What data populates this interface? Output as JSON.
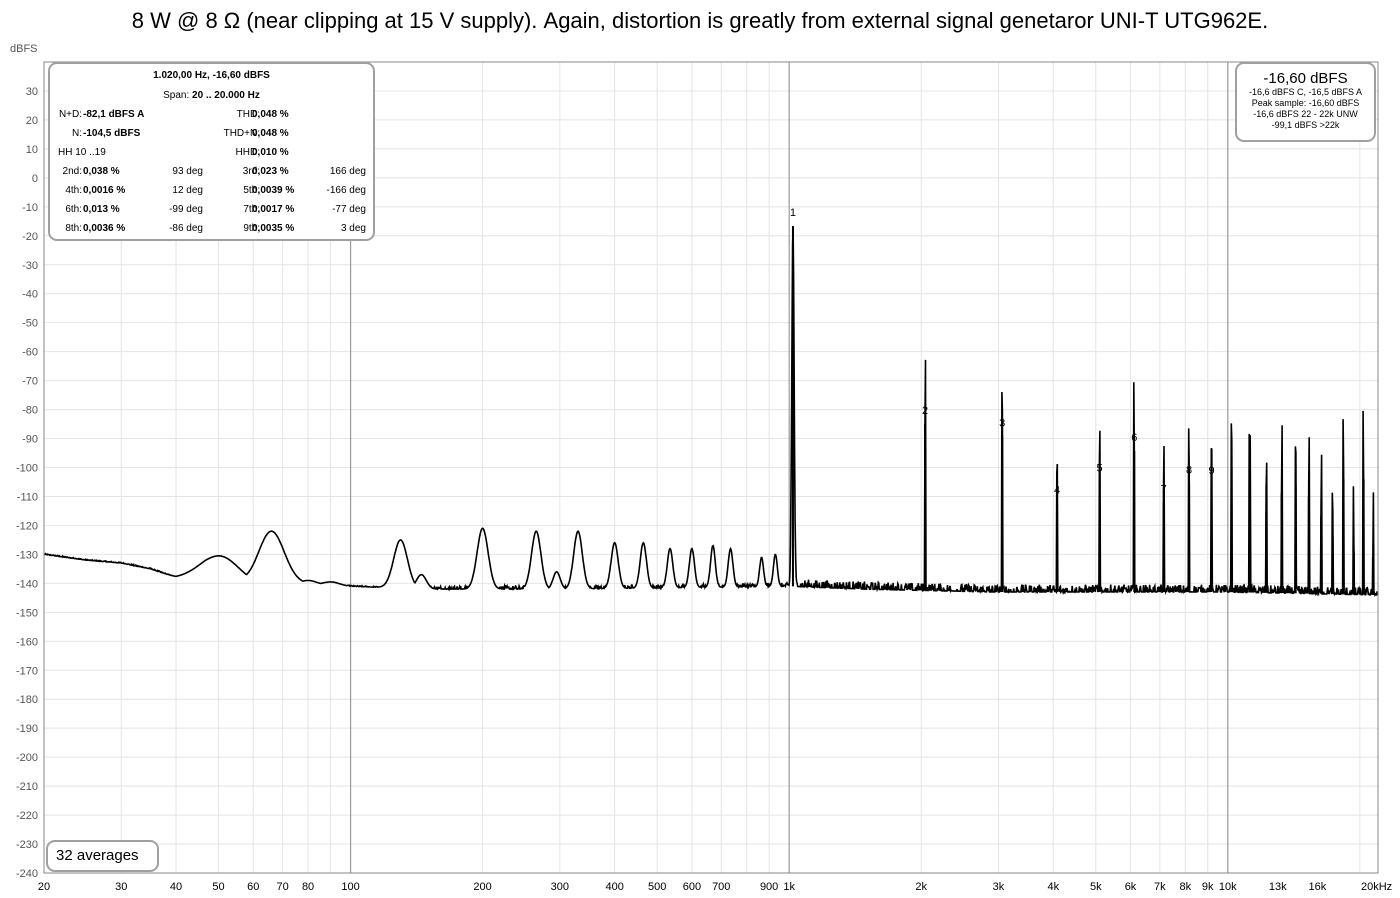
{
  "title": "8 W @ 8 Ω (near clipping at 15 V supply). Again, distortion is greatly from external signal genetaror UNI-T UTG962E.",
  "stats": {
    "header_freq": "1.020,00 Hz, -16,60 dBFS",
    "span_label": "Span:",
    "span_value": "20 .. 20.000 Hz",
    "rows": [
      {
        "l1": "N+D:",
        "v1": "-82,1 dBFS A",
        "p1": "",
        "l2": "THD:",
        "v2": "0,048 %",
        "p2": ""
      },
      {
        "l1": "N:",
        "v1": "-104,5 dBFS",
        "p1": "",
        "l2": "THD+N:",
        "v2": "0,048 %",
        "p2": ""
      },
      {
        "l1": "HH 10 ..19",
        "v1": "",
        "p1": "",
        "l2": "HHD:",
        "v2": "0,010 %",
        "p2": ""
      },
      {
        "l1": "2nd:",
        "v1": "0,038 %",
        "p1": "93 deg",
        "l2": "3rd:",
        "v2": "0,023 %",
        "p2": "166 deg"
      },
      {
        "l1": "4th:",
        "v1": "0,0016 %",
        "p1": "12 deg",
        "l2": "5th:",
        "v2": "0,0039 %",
        "p2": "-166 deg"
      },
      {
        "l1": "6th:",
        "v1": "0,013 %",
        "p1": "-99 deg",
        "l2": "7th:",
        "v2": "0,0017 %",
        "p2": "-77 deg"
      },
      {
        "l1": "8th:",
        "v1": "0,0036 %",
        "p1": "-86 deg",
        "l2": "9th:",
        "v2": "0,0035 %",
        "p2": "3 deg"
      }
    ]
  },
  "level": {
    "main": "-16,60 dBFS",
    "lines": [
      "-16,6 dBFS C, -16,5 dBFS A",
      "Peak sample: -16,60 dBFS",
      "-16,6 dBFS 22 - 22k UNW",
      "-99,1 dBFS >22k"
    ]
  },
  "averages": "32 averages",
  "colors": {
    "trace": "#000000",
    "grid_minor": "#e4e4e4",
    "grid_major": "#9a9a9a",
    "box_border": "#a0a0a0"
  },
  "chart_data": {
    "type": "line",
    "y_unit_label": "dBFS",
    "x_unit_label": "20kHz",
    "x_scale": "log",
    "xlim": [
      20,
      22000
    ],
    "ylim": [
      -240,
      40
    ],
    "y_ticks": [
      30,
      20,
      10,
      0,
      -10,
      -20,
      -30,
      -40,
      -50,
      -60,
      -70,
      -80,
      -90,
      -100,
      -110,
      -120,
      -130,
      -140,
      -150,
      -160,
      -170,
      -180,
      -190,
      -200,
      -210,
      -220,
      -230,
      -240
    ],
    "x_ticks": [
      {
        "v": 20,
        "t": "20"
      },
      {
        "v": 30,
        "t": "30"
      },
      {
        "v": 40,
        "t": "40"
      },
      {
        "v": 50,
        "t": "50"
      },
      {
        "v": 60,
        "t": "60"
      },
      {
        "v": 70,
        "t": "70"
      },
      {
        "v": 80,
        "t": "80"
      },
      {
        "v": 100,
        "t": "100"
      },
      {
        "v": 200,
        "t": "200"
      },
      {
        "v": 300,
        "t": "300"
      },
      {
        "v": 400,
        "t": "400"
      },
      {
        "v": 500,
        "t": "500"
      },
      {
        "v": 600,
        "t": "600"
      },
      {
        "v": 700,
        "t": "700"
      },
      {
        "v": 900,
        "t": "900"
      },
      {
        "v": 1000,
        "t": "1k"
      },
      {
        "v": 2000,
        "t": "2k"
      },
      {
        "v": 3000,
        "t": "3k"
      },
      {
        "v": 4000,
        "t": "4k"
      },
      {
        "v": 5000,
        "t": "5k"
      },
      {
        "v": 6000,
        "t": "6k"
      },
      {
        "v": 7000,
        "t": "7k"
      },
      {
        "v": 8000,
        "t": "8k"
      },
      {
        "v": 9000,
        "t": "9k"
      },
      {
        "v": 10000,
        "t": "10k"
      },
      {
        "v": 13000,
        "t": "13k"
      },
      {
        "v": 16000,
        "t": "16k"
      }
    ],
    "baseline": [
      [
        20,
        -130
      ],
      [
        25,
        -132
      ],
      [
        30,
        -133
      ],
      [
        35,
        -135
      ],
      [
        40,
        -138
      ],
      [
        45,
        -137.5
      ],
      [
        47,
        -137
      ],
      [
        55,
        -139
      ],
      [
        60,
        -140
      ],
      [
        75,
        -140
      ],
      [
        100,
        -141
      ],
      [
        150,
        -142
      ],
      [
        300,
        -142
      ],
      [
        1000,
        -141
      ],
      [
        1500,
        -142
      ],
      [
        3000,
        -143
      ],
      [
        10000,
        -143
      ],
      [
        22000,
        -144
      ]
    ],
    "peaks": [
      {
        "f": 50,
        "db": -130.5,
        "w": 0.09
      },
      {
        "f": 66,
        "db": -122,
        "w": 0.065
      },
      {
        "f": 80,
        "db": -139,
        "w": 0.04
      },
      {
        "f": 90,
        "db": -139.5,
        "w": 0.04
      },
      {
        "f": 130,
        "db": -125,
        "w": 0.035
      },
      {
        "f": 145,
        "db": -137,
        "w": 0.025
      },
      {
        "f": 200,
        "db": -121,
        "w": 0.028
      },
      {
        "f": 265,
        "db": -122,
        "w": 0.024
      },
      {
        "f": 295,
        "db": -136,
        "w": 0.018
      },
      {
        "f": 330,
        "db": -122,
        "w": 0.022
      },
      {
        "f": 400,
        "db": -126,
        "w": 0.018
      },
      {
        "f": 465,
        "db": -126,
        "w": 0.016
      },
      {
        "f": 535,
        "db": -128,
        "w": 0.014
      },
      {
        "f": 600,
        "db": -128,
        "w": 0.013
      },
      {
        "f": 670,
        "db": -127,
        "w": 0.012
      },
      {
        "f": 735,
        "db": -128,
        "w": 0.012
      },
      {
        "f": 865,
        "db": -131,
        "w": 0.01
      },
      {
        "f": 930,
        "db": -130,
        "w": 0.01
      },
      {
        "f": 1020,
        "db": -16.6,
        "w": 0.006
      }
    ],
    "harmonics": [
      {
        "n": "1",
        "f": 1020,
        "db": -16.6
      },
      {
        "n": "2",
        "f": 2040,
        "db": -84.9
      },
      {
        "n": "3",
        "f": 3060,
        "db": -89.3
      },
      {
        "n": "4",
        "f": 4080,
        "db": -112.5
      },
      {
        "n": "5",
        "f": 5100,
        "db": -104.8
      },
      {
        "n": "6",
        "f": 6120,
        "db": -94.3
      },
      {
        "n": "7",
        "f": 7140,
        "db": -112.0
      },
      {
        "n": "8",
        "f": 8160,
        "db": -105.5
      },
      {
        "n": "9",
        "f": 9180,
        "db": -105.7
      }
    ],
    "extra_spikes": [
      {
        "f": 10200,
        "db": -100
      },
      {
        "f": 11220,
        "db": -113
      },
      {
        "f": 12240,
        "db": -115
      },
      {
        "f": 13260,
        "db": -109
      },
      {
        "f": 14280,
        "db": -106
      },
      {
        "f": 15300,
        "db": -110
      },
      {
        "f": 16320,
        "db": -117
      },
      {
        "f": 17340,
        "db": -124
      },
      {
        "f": 18360,
        "db": -104
      },
      {
        "f": 19380,
        "db": -129
      },
      {
        "f": 20400,
        "db": -104
      },
      {
        "f": 21420,
        "db": -131
      }
    ]
  }
}
